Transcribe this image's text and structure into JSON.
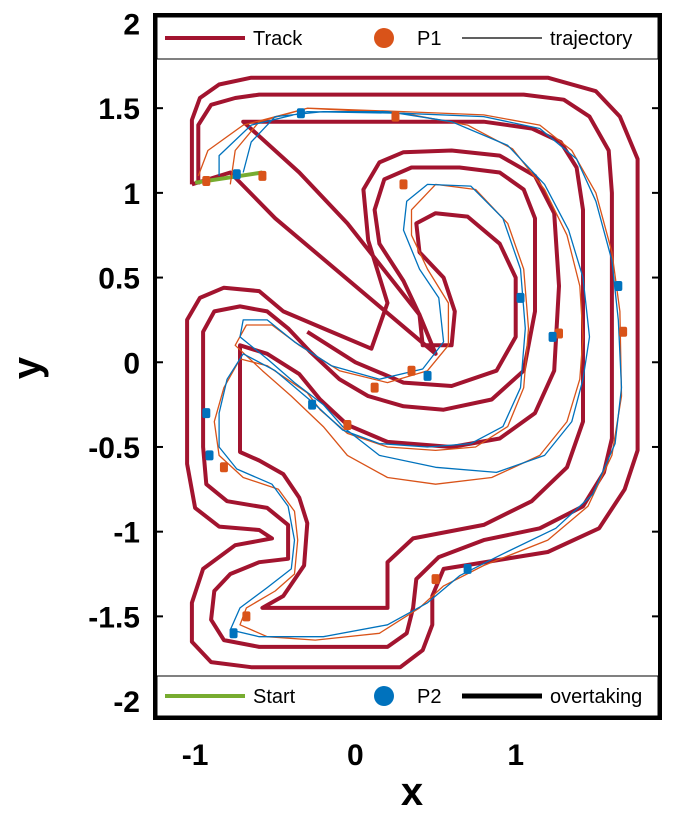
{
  "chart_data": {
    "type": "line",
    "title": "",
    "xlabel": "x",
    "ylabel": "y",
    "xlim": [
      -1.25,
      1.9
    ],
    "ylim": [
      -2.1,
      2.05
    ],
    "x_ticks": [
      -1,
      0,
      1
    ],
    "x_tick_labels": [
      "-1",
      "0",
      "1"
    ],
    "y_ticks": [
      2,
      1.5,
      1,
      0.5,
      0,
      -0.5,
      -1,
      -1.5,
      -2
    ],
    "y_tick_labels": [
      "2",
      "1.5",
      "1",
      "0.5",
      "0",
      "-0.5",
      "-1",
      "-1.5",
      "-2"
    ],
    "grid": false,
    "colors": {
      "track": "#A2142F",
      "p1": "#D95319",
      "p2": "#0072BD",
      "start": "#77AC30",
      "trajectory": "#000000"
    },
    "legends": [
      {
        "placement": "top",
        "entries": [
          {
            "label": "Track",
            "marker": "line",
            "color": "#A2142F"
          },
          {
            "label": "P1",
            "marker": "dot",
            "color": "#D95319"
          },
          {
            "label": "trajectory",
            "marker": "thin-line",
            "color": "#000000"
          }
        ]
      },
      {
        "placement": "bottom",
        "entries": [
          {
            "label": "Start",
            "marker": "line",
            "color": "#77AC30"
          },
          {
            "label": "P2",
            "marker": "dot",
            "color": "#0072BD"
          },
          {
            "label": "overtaking",
            "marker": "thick-line",
            "color": "#000000"
          }
        ]
      }
    ],
    "track": {
      "outer": [
        [
          -1.02,
          1.05
        ],
        [
          -1.02,
          1.43
        ],
        [
          -0.97,
          1.56
        ],
        [
          -0.85,
          1.64
        ],
        [
          -0.65,
          1.68
        ],
        [
          0.5,
          1.68
        ],
        [
          1.2,
          1.68
        ],
        [
          1.5,
          1.6
        ],
        [
          1.65,
          1.45
        ],
        [
          1.76,
          1.2
        ],
        [
          1.76,
          -0.52
        ],
        [
          1.68,
          -0.75
        ],
        [
          1.52,
          -0.98
        ],
        [
          1.2,
          -1.12
        ],
        [
          0.55,
          -1.22
        ],
        [
          0.48,
          -1.38
        ],
        [
          0.48,
          -1.55
        ],
        [
          0.42,
          -1.7
        ],
        [
          0.28,
          -1.8
        ],
        [
          -0.65,
          -1.8
        ],
        [
          -0.9,
          -1.77
        ],
        [
          -1.02,
          -1.65
        ],
        [
          -1.02,
          -1.42
        ],
        [
          -0.95,
          -1.22
        ],
        [
          -0.75,
          -1.08
        ],
        [
          -0.52,
          -1.04
        ],
        [
          -0.6,
          -0.99
        ],
        [
          -0.85,
          -0.97
        ],
        [
          -1.0,
          -0.86
        ],
        [
          -1.05,
          -0.6
        ],
        [
          -1.05,
          0.25
        ],
        [
          -0.97,
          0.38
        ],
        [
          -0.82,
          0.44
        ],
        [
          -0.6,
          0.42
        ],
        [
          -0.45,
          0.3
        ],
        [
          -0.2,
          0.2
        ],
        [
          0.1,
          0.08
        ],
        [
          0.2,
          0.35
        ],
        [
          0.08,
          0.72
        ],
        [
          0.05,
          1.02
        ],
        [
          0.15,
          1.18
        ],
        [
          0.3,
          1.24
        ],
        [
          0.6,
          1.25
        ],
        [
          0.9,
          1.22
        ],
        [
          1.12,
          1.1
        ],
        [
          1.24,
          0.88
        ],
        [
          1.27,
          0.45
        ],
        [
          1.24,
          -0.05
        ],
        [
          1.12,
          -0.3
        ],
        [
          0.9,
          -0.45
        ],
        [
          0.6,
          -0.5
        ],
        [
          0.2,
          -0.47
        ],
        [
          -0.05,
          -0.37
        ],
        [
          -0.22,
          -0.22
        ],
        [
          -0.35,
          -0.07
        ],
        [
          -0.55,
          0.05
        ],
        [
          -0.72,
          0.1
        ],
        [
          -0.72,
          -0.53
        ],
        [
          -0.6,
          -0.58
        ],
        [
          -0.45,
          -0.66
        ],
        [
          -0.35,
          -0.8
        ],
        [
          -0.3,
          -0.95
        ],
        [
          -0.32,
          -1.2
        ],
        [
          -0.45,
          -1.38
        ],
        [
          -0.58,
          -1.45
        ],
        [
          0.2,
          -1.45
        ],
        [
          0.2,
          -1.18
        ],
        [
          0.36,
          -1.04
        ],
        [
          0.8,
          -0.96
        ],
        [
          1.1,
          -0.82
        ],
        [
          1.32,
          -0.62
        ],
        [
          1.42,
          -0.35
        ],
        [
          1.42,
          0.9
        ],
        [
          1.38,
          1.15
        ],
        [
          1.28,
          1.3
        ],
        [
          1.1,
          1.38
        ],
        [
          0.8,
          1.42
        ],
        [
          -0.7,
          1.42
        ],
        [
          -0.35,
          1.12
        ],
        [
          -0.05,
          0.82
        ],
        [
          0.2,
          0.52
        ],
        [
          0.4,
          0.28
        ],
        [
          0.5,
          0.05
        ],
        [
          -0.5,
          0.85
        ],
        [
          -0.78,
          1.12
        ],
        [
          -1.02,
          1.05
        ]
      ],
      "inner": [
        [
          -0.98,
          1.05
        ],
        [
          -0.98,
          1.4
        ],
        [
          -0.9,
          1.52
        ],
        [
          -0.75,
          1.56
        ],
        [
          -0.6,
          1.58
        ],
        [
          1.05,
          1.58
        ],
        [
          1.3,
          1.55
        ],
        [
          1.46,
          1.45
        ],
        [
          1.58,
          1.25
        ],
        [
          1.6,
          1.0
        ],
        [
          1.6,
          -0.45
        ],
        [
          1.55,
          -0.65
        ],
        [
          1.42,
          -0.85
        ],
        [
          1.15,
          -0.98
        ],
        [
          0.8,
          -1.05
        ],
        [
          0.52,
          -1.15
        ],
        [
          0.38,
          -1.28
        ],
        [
          0.36,
          -1.45
        ],
        [
          0.32,
          -1.6
        ],
        [
          0.2,
          -1.68
        ],
        [
          -0.6,
          -1.68
        ],
        [
          -0.82,
          -1.64
        ],
        [
          -0.9,
          -1.52
        ],
        [
          -0.88,
          -1.35
        ],
        [
          -0.78,
          -1.25
        ],
        [
          -0.6,
          -1.18
        ],
        [
          -0.42,
          -1.16
        ],
        [
          -0.42,
          -0.96
        ],
        [
          -0.55,
          -0.86
        ],
        [
          -0.8,
          -0.82
        ],
        [
          -0.93,
          -0.72
        ],
        [
          -0.95,
          -0.5
        ],
        [
          -0.95,
          0.18
        ],
        [
          -0.88,
          0.3
        ],
        [
          -0.72,
          0.33
        ],
        [
          -0.55,
          0.3
        ],
        [
          -0.42,
          0.2
        ],
        [
          -0.28,
          0.06
        ],
        [
          -0.1,
          -0.1
        ],
        [
          0.08,
          -0.2
        ],
        [
          0.3,
          -0.26
        ],
        [
          0.55,
          -0.28
        ],
        [
          0.85,
          -0.22
        ],
        [
          1.05,
          -0.05
        ],
        [
          1.12,
          0.3
        ],
        [
          1.12,
          0.85
        ],
        [
          1.05,
          1.02
        ],
        [
          0.9,
          1.12
        ],
        [
          0.65,
          1.15
        ],
        [
          0.35,
          1.15
        ],
        [
          0.18,
          1.08
        ],
        [
          0.12,
          0.9
        ],
        [
          0.15,
          0.7
        ],
        [
          0.3,
          0.48
        ],
        [
          0.4,
          0.28
        ],
        [
          0.42,
          0.1
        ],
        [
          0.6,
          0.1
        ],
        [
          0.62,
          0.3
        ],
        [
          0.55,
          0.5
        ],
        [
          0.4,
          0.65
        ],
        [
          0.38,
          0.82
        ],
        [
          0.5,
          0.88
        ],
        [
          0.7,
          0.86
        ],
        [
          0.9,
          0.7
        ],
        [
          1.0,
          0.5
        ],
        [
          1.0,
          0.15
        ],
        [
          0.88,
          -0.05
        ],
        [
          0.6,
          -0.14
        ],
        [
          0.3,
          -0.12
        ],
        [
          0.0,
          0.0
        ],
        [
          -0.3,
          0.18
        ]
      ]
    },
    "start_line": [
      [
        -1.0,
        1.06
      ],
      [
        -0.58,
        1.12
      ]
    ],
    "p1": {
      "trajectory": [
        [
          -0.78,
          1.05
        ],
        [
          -0.75,
          1.25
        ],
        [
          -0.6,
          1.42
        ],
        [
          -0.3,
          1.5
        ],
        [
          0.3,
          1.47
        ],
        [
          0.7,
          1.4
        ],
        [
          0.98,
          1.26
        ],
        [
          1.18,
          1.02
        ],
        [
          1.32,
          0.75
        ],
        [
          1.4,
          0.45
        ],
        [
          1.42,
          0.15
        ],
        [
          1.4,
          -0.1
        ],
        [
          1.32,
          -0.35
        ],
        [
          1.15,
          -0.55
        ],
        [
          0.85,
          -0.68
        ],
        [
          0.5,
          -0.72
        ],
        [
          0.2,
          -0.68
        ],
        [
          -0.05,
          -0.55
        ],
        [
          -0.2,
          -0.38
        ],
        [
          -0.4,
          -0.2
        ],
        [
          -0.58,
          -0.05
        ],
        [
          -0.75,
          0.1
        ],
        [
          -0.68,
          0.22
        ],
        [
          -0.52,
          0.22
        ],
        [
          -0.35,
          0.1
        ],
        [
          -0.1,
          -0.05
        ],
        [
          0.2,
          -0.12
        ],
        [
          0.45,
          -0.05
        ],
        [
          0.58,
          0.1
        ],
        [
          0.58,
          0.35
        ],
        [
          0.45,
          0.55
        ],
        [
          0.35,
          0.75
        ],
        [
          0.35,
          0.9
        ],
        [
          0.5,
          1.05
        ],
        [
          0.75,
          1.02
        ],
        [
          0.95,
          0.82
        ],
        [
          1.05,
          0.55
        ],
        [
          1.08,
          0.2
        ],
        [
          1.05,
          -0.15
        ],
        [
          0.95,
          -0.38
        ],
        [
          0.75,
          -0.5
        ],
        [
          0.5,
          -0.52
        ],
        [
          0.2,
          -0.5
        ],
        [
          -0.05,
          -0.42
        ],
        [
          -0.22,
          -0.28
        ],
        [
          -0.3,
          -0.18
        ],
        [
          -0.55,
          -0.02
        ],
        [
          -0.72,
          0.02
        ],
        [
          -0.82,
          -0.15
        ],
        [
          -0.88,
          -0.35
        ],
        [
          -0.85,
          -0.55
        ],
        [
          -0.7,
          -0.68
        ],
        [
          -0.48,
          -0.75
        ],
        [
          -0.38,
          -0.88
        ],
        [
          -0.36,
          -1.05
        ],
        [
          -0.38,
          -1.25
        ],
        [
          -0.5,
          -1.35
        ],
        [
          -0.68,
          -1.45
        ],
        [
          -0.72,
          -1.55
        ],
        [
          -0.55,
          -1.62
        ],
        [
          -0.25,
          -1.64
        ],
        [
          0.15,
          -1.6
        ],
        [
          0.4,
          -1.45
        ],
        [
          0.55,
          -1.32
        ],
        [
          0.8,
          -1.2
        ],
        [
          1.2,
          -1.05
        ],
        [
          1.45,
          -0.85
        ],
        [
          1.6,
          -0.55
        ],
        [
          1.66,
          -0.2
        ],
        [
          1.65,
          0.3
        ],
        [
          1.6,
          0.65
        ],
        [
          1.5,
          1.0
        ],
        [
          1.35,
          1.25
        ],
        [
          1.15,
          1.4
        ],
        [
          0.8,
          1.46
        ],
        [
          0.3,
          1.48
        ],
        [
          -0.3,
          1.5
        ],
        [
          -0.7,
          1.4
        ],
        [
          -0.92,
          1.25
        ],
        [
          -0.98,
          1.1
        ]
      ],
      "markers": [
        [
          -0.93,
          1.07
        ],
        [
          0.25,
          1.45
        ],
        [
          0.3,
          1.05
        ],
        [
          1.27,
          0.17
        ],
        [
          1.67,
          0.18
        ],
        [
          -0.05,
          -0.37
        ],
        [
          0.12,
          -0.15
        ],
        [
          0.35,
          -0.05
        ],
        [
          -0.82,
          -0.62
        ],
        [
          -0.68,
          -1.5
        ],
        [
          0.5,
          -1.28
        ],
        [
          -0.58,
          1.1
        ]
      ]
    },
    "p2": {
      "trajectory": [
        [
          -0.7,
          1.12
        ],
        [
          -0.65,
          1.3
        ],
        [
          -0.5,
          1.45
        ],
        [
          -0.2,
          1.48
        ],
        [
          0.2,
          1.48
        ],
        [
          0.6,
          1.42
        ],
        [
          0.95,
          1.28
        ],
        [
          1.18,
          1.05
        ],
        [
          1.33,
          0.78
        ],
        [
          1.42,
          0.5
        ],
        [
          1.46,
          0.15
        ],
        [
          1.42,
          -0.1
        ],
        [
          1.35,
          -0.35
        ],
        [
          1.18,
          -0.55
        ],
        [
          0.88,
          -0.65
        ],
        [
          0.5,
          -0.62
        ],
        [
          0.15,
          -0.55
        ],
        [
          -0.08,
          -0.38
        ],
        [
          -0.2,
          -0.25
        ],
        [
          -0.38,
          -0.12
        ],
        [
          -0.55,
          0.02
        ],
        [
          -0.72,
          0.15
        ],
        [
          -0.7,
          0.25
        ],
        [
          -0.55,
          0.25
        ],
        [
          -0.38,
          0.12
        ],
        [
          -0.15,
          -0.02
        ],
        [
          0.15,
          -0.1
        ],
        [
          0.42,
          -0.04
        ],
        [
          0.55,
          0.12
        ],
        [
          0.52,
          0.38
        ],
        [
          0.4,
          0.55
        ],
        [
          0.3,
          0.78
        ],
        [
          0.32,
          0.95
        ],
        [
          0.45,
          1.05
        ],
        [
          0.72,
          1.04
        ],
        [
          0.92,
          0.85
        ],
        [
          1.03,
          0.55
        ],
        [
          1.06,
          0.2
        ],
        [
          1.03,
          -0.15
        ],
        [
          0.92,
          -0.38
        ],
        [
          0.72,
          -0.48
        ],
        [
          0.45,
          -0.5
        ],
        [
          0.15,
          -0.48
        ],
        [
          -0.08,
          -0.4
        ],
        [
          -0.25,
          -0.25
        ],
        [
          -0.5,
          -0.05
        ],
        [
          -0.7,
          0.05
        ],
        [
          -0.8,
          -0.1
        ],
        [
          -0.85,
          -0.3
        ],
        [
          -0.85,
          -0.5
        ],
        [
          -0.74,
          -0.63
        ],
        [
          -0.52,
          -0.72
        ],
        [
          -0.42,
          -0.85
        ],
        [
          -0.38,
          -1.05
        ],
        [
          -0.4,
          -1.22
        ],
        [
          -0.55,
          -1.33
        ],
        [
          -0.72,
          -1.45
        ],
        [
          -0.78,
          -1.58
        ],
        [
          -0.6,
          -1.62
        ],
        [
          -0.2,
          -1.62
        ],
        [
          0.2,
          -1.55
        ],
        [
          0.45,
          -1.42
        ],
        [
          0.65,
          -1.26
        ],
        [
          0.9,
          -1.14
        ],
        [
          1.25,
          -0.98
        ],
        [
          1.48,
          -0.78
        ],
        [
          1.62,
          -0.48
        ],
        [
          1.66,
          -0.15
        ],
        [
          1.64,
          0.25
        ],
        [
          1.6,
          0.6
        ],
        [
          1.5,
          0.95
        ],
        [
          1.38,
          1.2
        ],
        [
          1.15,
          1.38
        ],
        [
          0.8,
          1.45
        ],
        [
          0.3,
          1.47
        ],
        [
          -0.3,
          1.48
        ],
        [
          -0.65,
          1.4
        ],
        [
          -0.85,
          1.22
        ],
        [
          -0.85,
          1.1
        ]
      ],
      "markers": [
        [
          -0.34,
          1.47
        ],
        [
          -0.74,
          1.11
        ],
        [
          1.03,
          0.38
        ],
        [
          1.23,
          0.15
        ],
        [
          1.64,
          0.45
        ],
        [
          -0.27,
          -0.25
        ],
        [
          0.45,
          -0.08
        ],
        [
          -0.91,
          -0.55
        ],
        [
          -0.76,
          -1.6
        ],
        [
          0.7,
          -1.22
        ],
        [
          -0.93,
          -0.3
        ]
      ]
    }
  }
}
